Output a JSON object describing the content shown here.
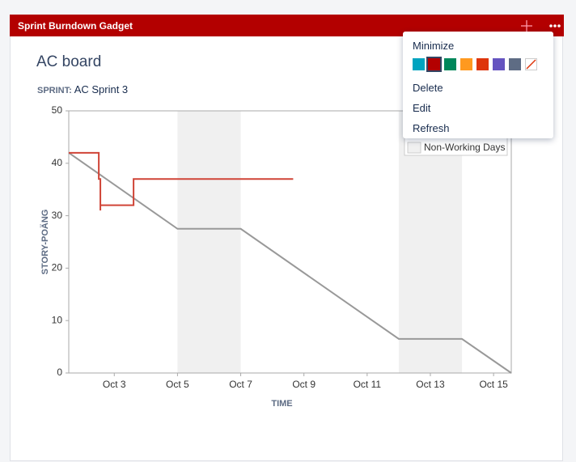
{
  "gadget_title": "Sprint Burndown Gadget",
  "board": "AC board",
  "sprint_label": "SPRINT:",
  "sprint_name": "AC Sprint 3",
  "menu": {
    "items": [
      "Minimize",
      "Delete",
      "Edit",
      "Refresh"
    ]
  },
  "chart_data": {
    "type": "line",
    "x_label": "TIME",
    "y_label": "STORY-POÄNG",
    "xlim": [
      1.56,
      15.56
    ],
    "ylim": [
      0,
      50
    ],
    "xticks": [
      {
        "value": 3,
        "label": "Oct 3"
      },
      {
        "value": 5,
        "label": "Oct 5"
      },
      {
        "value": 7,
        "label": "Oct 7"
      },
      {
        "value": 9,
        "label": "Oct 9"
      },
      {
        "value": 11,
        "label": "Oct 11"
      },
      {
        "value": 13,
        "label": "Oct 13"
      },
      {
        "value": 15,
        "label": "Oct 15"
      }
    ],
    "yticks": [
      0,
      10,
      20,
      30,
      40,
      50
    ],
    "grid": false,
    "bands": [
      [
        5,
        7
      ],
      [
        12,
        14
      ]
    ],
    "bands_label": "Non-Working Days",
    "bands_color": "#f0f0f0",
    "series": [
      {
        "color": "#999999",
        "x": [
          1.56,
          5,
          7,
          12,
          14,
          15.56
        ],
        "values": [
          42,
          27.5,
          27.5,
          6.5,
          6.5,
          0
        ]
      },
      {
        "color": "#d04437",
        "x": [
          1.56,
          2.51,
          2.51,
          2.56,
          2.56,
          2.56,
          3.61,
          3.61,
          8.66
        ],
        "values": [
          42,
          42,
          37,
          37,
          31,
          32,
          32,
          37,
          37
        ]
      }
    ]
  }
}
